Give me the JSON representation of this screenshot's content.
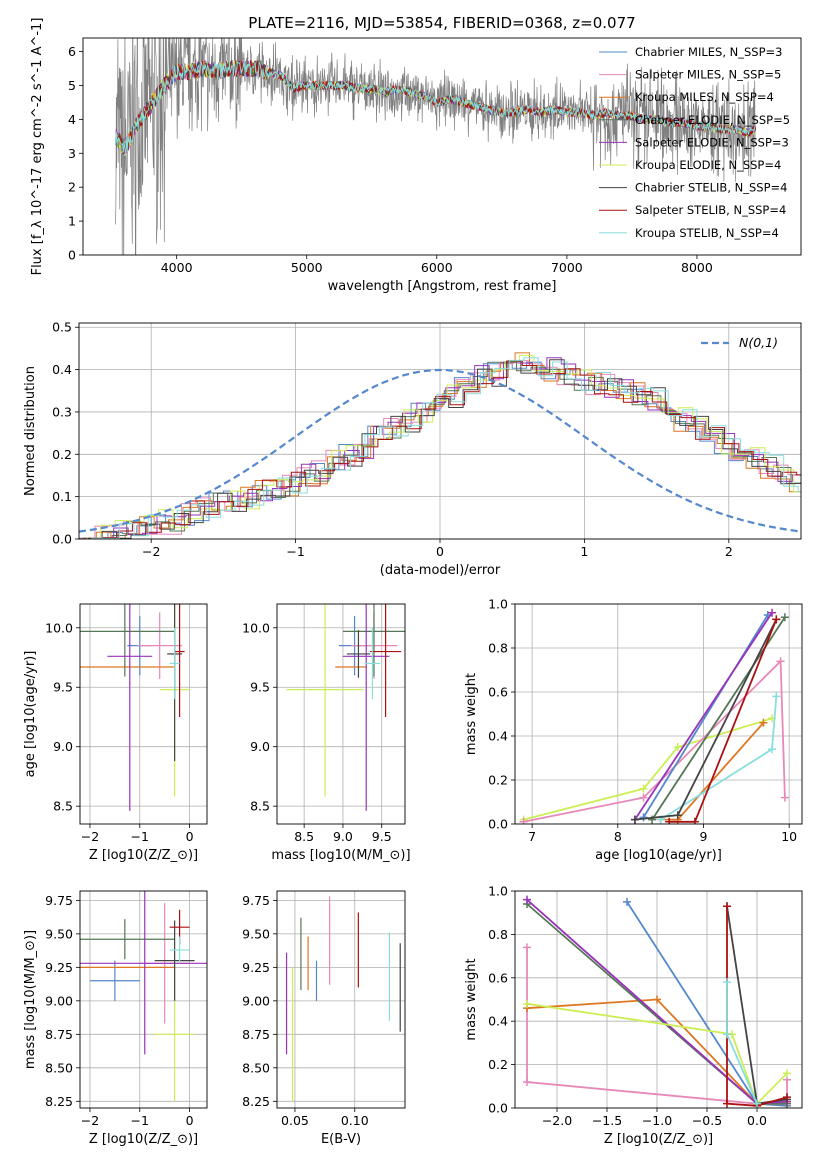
{
  "chart_data": [
    {
      "id": "spectrum",
      "type": "line",
      "title": "PLATE=2116, MJD=53854, FIBERID=0368, z=0.077",
      "xlabel": "wavelength [Angstrom, rest frame]",
      "ylabel": "Flux [f_λ 10^-17 erg cm^-2 s^-1 A^-1]",
      "xlim": [
        3280,
        8800
      ],
      "ylim": [
        0,
        6.4
      ],
      "xticks": [
        4000,
        5000,
        6000,
        7000,
        8000
      ],
      "yticks": [
        0,
        1,
        2,
        3,
        4,
        5,
        6
      ],
      "data_color": "#808080",
      "data_x": [
        3530,
        3600,
        3700,
        3800,
        3900,
        3950,
        4000,
        4100,
        4200,
        4300,
        4400,
        4500,
        4600,
        4700,
        4800,
        4900,
        5000,
        5100,
        5200,
        5300,
        5400,
        5500,
        5600,
        5700,
        5800,
        5900,
        6000,
        6100,
        6200,
        6300,
        6400,
        6500,
        6550,
        6600,
        6700,
        6800,
        6900,
        7000,
        7100,
        7200,
        7300,
        7400,
        7500,
        7600,
        7700,
        7800,
        7900,
        8000,
        8100,
        8200,
        8300,
        8400,
        8450
      ],
      "data_y": [
        3.5,
        3.1,
        3.9,
        4.4,
        5.0,
        5.2,
        5.4,
        5.4,
        5.5,
        5.4,
        5.5,
        5.5,
        5.5,
        5.4,
        5.3,
        4.9,
        5.0,
        5.0,
        5.0,
        5.0,
        4.9,
        4.9,
        4.8,
        4.9,
        4.8,
        4.7,
        4.5,
        4.6,
        4.5,
        4.4,
        4.3,
        4.2,
        4.2,
        4.2,
        4.3,
        4.2,
        4.3,
        4.2,
        4.2,
        4.1,
        4.2,
        4.1,
        4.1,
        4.0,
        4.0,
        3.9,
        3.9,
        3.8,
        3.8,
        3.7,
        3.7,
        3.6,
        3.7
      ],
      "legend": [
        "Chabrier MILES, N_SSP=3",
        "Salpeter MILES, N_SSP=5",
        "Kroupa MILES, N_SSP=4",
        "Chabrier ELODIE, N_SSP=5",
        "Salpeter ELODIE, N_SSP=3",
        "Kroupa ELODIE, N_SSP=4",
        "Chabrier STELIB, N_SSP=4",
        "Salpeter STELIB, N_SSP=4",
        "Kroupa STELIB, N_SSP=4"
      ],
      "legend_position": "right"
    },
    {
      "id": "residuals",
      "type": "histogram",
      "xlabel": "(data-model)/error",
      "ylabel": "Normed distribution",
      "xlim": [
        -2.5,
        2.5
      ],
      "ylim": [
        0,
        0.51
      ],
      "xticks": [
        -2,
        -1,
        0,
        1,
        2
      ],
      "yticks": [
        0.0,
        0.1,
        0.2,
        0.3,
        0.4,
        0.5
      ],
      "bin_width": 0.1,
      "bin_start": -2.5,
      "curve_label": "N(0,1)",
      "curve_color": "#5588cc",
      "approx_envelope": [
        0.01,
        0.01,
        0.02,
        0.03,
        0.03,
        0.04,
        0.04,
        0.06,
        0.07,
        0.08,
        0.09,
        0.1,
        0.11,
        0.12,
        0.13,
        0.15,
        0.16,
        0.18,
        0.2,
        0.22,
        0.24,
        0.26,
        0.28,
        0.3,
        0.32,
        0.34,
        0.36,
        0.38,
        0.39,
        0.4,
        0.42,
        0.41,
        0.4,
        0.39,
        0.38,
        0.37,
        0.36,
        0.35,
        0.34,
        0.33,
        0.3,
        0.28,
        0.26,
        0.24,
        0.22,
        0.2,
        0.19,
        0.17,
        0.15,
        0.13,
        0.12,
        0.1,
        0.09,
        0.08,
        0.07,
        0.06,
        0.05,
        0.04,
        0.04,
        0.03
      ]
    },
    {
      "id": "age_vs_Z",
      "type": "scatter",
      "xlabel": "Z [log10(Z/Z_⊙)]",
      "ylabel": "age  [log10(age/yr)]",
      "xlim": [
        -2.2,
        0.35
      ],
      "ylim": [
        8.35,
        10.2
      ],
      "xticks": [
        -2,
        -1,
        0
      ],
      "yticks": [
        8.5,
        9.0,
        9.5,
        10.0
      ],
      "points": [
        {
          "color": "#5588cc",
          "x": -1.0,
          "xerr": 0.25,
          "y": 9.85,
          "yerr": 0.25
        },
        {
          "color": "#e888b8",
          "x": -0.6,
          "xerr": 0.45,
          "y": 9.85,
          "yerr": 0.28
        },
        {
          "color": "#dd7722",
          "x": -1.3,
          "xerr": 1.0,
          "y": 9.67,
          "yerr": 0.0
        },
        {
          "color": "#557755",
          "x": -1.3,
          "xerr": 1.0,
          "y": 9.97,
          "yerr": 0.38
        },
        {
          "color": "#9933bb",
          "x": -1.2,
          "xerr": 0.45,
          "y": 9.76,
          "yerr": 1.3
        },
        {
          "color": "#ccee55",
          "x": -0.3,
          "xerr": 0.3,
          "y": 9.48,
          "yerr": 0.9
        },
        {
          "color": "#444444",
          "x": -0.3,
          "xerr": 0.15,
          "y": 9.78,
          "yerr": 0.9
        },
        {
          "color": "#aa1111",
          "x": -0.2,
          "xerr": 0.1,
          "y": 9.8,
          "yerr": 0.55
        },
        {
          "color": "#88dddd",
          "x": -0.3,
          "xerr": 0.1,
          "y": 9.7,
          "yerr": 0.3
        }
      ]
    },
    {
      "id": "age_vs_mass",
      "type": "scatter",
      "xlabel": "mass [log10(M/M_⊙)]",
      "ylabel": "",
      "xlim": [
        8.15,
        9.8
      ],
      "ylim": [
        8.35,
        10.2
      ],
      "xticks": [
        8.5,
        9.0,
        9.5
      ],
      "yticks": [
        8.5,
        9.0,
        9.5,
        10.0
      ],
      "points": [
        {
          "color": "#5588cc",
          "x": 9.15,
          "xerr": 0.2,
          "y": 9.85,
          "yerr": 0.25
        },
        {
          "color": "#e888b8",
          "x": 9.4,
          "xerr": 0.3,
          "y": 9.85,
          "yerr": 0.28
        },
        {
          "color": "#dd7722",
          "x": 9.1,
          "xerr": 0.2,
          "y": 9.67,
          "yerr": 0.0
        },
        {
          "color": "#557755",
          "x": 9.4,
          "xerr": 0.4,
          "y": 9.97,
          "yerr": 0.38
        },
        {
          "color": "#9933bb",
          "x": 9.3,
          "xerr": 0.3,
          "y": 9.76,
          "yerr": 1.3
        },
        {
          "color": "#ccee55",
          "x": 8.77,
          "xerr": 0.5,
          "y": 9.48,
          "yerr": 0.9
        },
        {
          "color": "#444444",
          "x": 9.2,
          "xerr": 0.15,
          "y": 9.78,
          "yerr": 0.2
        },
        {
          "color": "#aa1111",
          "x": 9.55,
          "xerr": 0.2,
          "y": 9.8,
          "yerr": 0.55
        },
        {
          "color": "#88dddd",
          "x": 9.38,
          "xerr": 0.1,
          "y": 9.7,
          "yerr": 0.3
        }
      ]
    },
    {
      "id": "weight_vs_age",
      "type": "line",
      "xlabel": "age  [log10(age/yr)]",
      "ylabel": "mass weight",
      "xlim": [
        6.8,
        10.15
      ],
      "ylim": [
        0,
        1.0
      ],
      "xticks": [
        7,
        8,
        9,
        10
      ],
      "yticks": [
        0.0,
        0.2,
        0.4,
        0.6,
        0.8,
        1.0
      ],
      "series": [
        {
          "color": "#ccee55",
          "x": [
            6.9,
            8.3,
            8.7,
            9.8
          ],
          "y": [
            0.02,
            0.16,
            0.35,
            0.48
          ]
        },
        {
          "color": "#dd7722",
          "x": [
            8.5,
            8.7,
            9.7
          ],
          "y": [
            0.02,
            0.02,
            0.46
          ]
        },
        {
          "color": "#88dddd",
          "x": [
            8.5,
            9.8,
            9.85
          ],
          "y": [
            0.02,
            0.34,
            0.58
          ]
        },
        {
          "color": "#e888b8",
          "x": [
            6.9,
            8.3,
            9.9,
            9.95
          ],
          "y": [
            0.01,
            0.12,
            0.74,
            0.12
          ]
        },
        {
          "color": "#5588cc",
          "x": [
            8.3,
            9.75
          ],
          "y": [
            0.03,
            0.95
          ]
        },
        {
          "color": "#9933bb",
          "x": [
            8.2,
            9.8
          ],
          "y": [
            0.02,
            0.96
          ]
        },
        {
          "color": "#557755",
          "x": [
            8.4,
            9.95
          ],
          "y": [
            0.02,
            0.94
          ]
        },
        {
          "color": "#444444",
          "x": [
            8.2,
            8.7,
            9.85
          ],
          "y": [
            0.02,
            0.04,
            0.93
          ]
        },
        {
          "color": "#aa1111",
          "x": [
            8.6,
            8.9,
            9.85
          ],
          "y": [
            0.01,
            0.01,
            0.93
          ]
        }
      ]
    },
    {
      "id": "mass_vs_Z",
      "type": "scatter",
      "xlabel": "Z [log10(Z/Z_⊙)]",
      "ylabel": "mass [log10(M/M_⊙)]",
      "xlim": [
        -2.2,
        0.35
      ],
      "ylim": [
        8.2,
        9.82
      ],
      "xticks": [
        -2,
        -1,
        0
      ],
      "yticks": [
        8.25,
        8.5,
        8.75,
        9.0,
        9.25,
        9.5,
        9.75
      ],
      "points": [
        {
          "color": "#5588cc",
          "x": -1.5,
          "xerr": 0.5,
          "y": 9.15,
          "yerr": 0.15
        },
        {
          "color": "#e888b8",
          "x": -0.5,
          "xerr": 0.5,
          "y": 9.28,
          "yerr": 0.45
        },
        {
          "color": "#dd7722",
          "x": -1.3,
          "xerr": 1.0,
          "y": 9.25,
          "yerr": 0.0
        },
        {
          "color": "#557755",
          "x": -1.3,
          "xerr": 1.0,
          "y": 9.46,
          "yerr": 0.15
        },
        {
          "color": "#9933bb",
          "x": -0.9,
          "xerr": 1.3,
          "y": 9.28,
          "yerr": 0.68
        },
        {
          "color": "#ccee55",
          "x": -0.3,
          "xerr": 0.4,
          "y": 8.75,
          "yerr": 0.5
        },
        {
          "color": "#444444",
          "x": -0.3,
          "xerr": 0.4,
          "y": 9.3,
          "yerr": 0.3
        },
        {
          "color": "#aa1111",
          "x": -0.2,
          "xerr": 0.2,
          "y": 9.55,
          "yerr": 0.13
        },
        {
          "color": "#88dddd",
          "x": -0.2,
          "xerr": 0.2,
          "y": 9.38,
          "yerr": 0.1
        }
      ]
    },
    {
      "id": "mass_vs_EBV",
      "type": "scatter",
      "xlabel": "E(B-V)",
      "ylabel": "",
      "xlim": [
        0.035,
        0.142
      ],
      "ylim": [
        8.2,
        9.82
      ],
      "xticks": [
        0.05,
        0.1
      ],
      "yticks": [
        8.25,
        8.5,
        8.75,
        9.0,
        9.25,
        9.5,
        9.75
      ],
      "points": [
        {
          "color": "#9933bb",
          "x": 0.043,
          "y": 8.98,
          "yerr": 0.38
        },
        {
          "color": "#ccee55",
          "x": 0.048,
          "y": 8.75,
          "yerr": 0.5
        },
        {
          "color": "#557755",
          "x": 0.055,
          "y": 9.35,
          "yerr": 0.27
        },
        {
          "color": "#dd7722",
          "x": 0.061,
          "y": 9.28,
          "yerr": 0.2
        },
        {
          "color": "#5588cc",
          "x": 0.068,
          "y": 9.15,
          "yerr": 0.15
        },
        {
          "color": "#e888b8",
          "x": 0.079,
          "y": 9.45,
          "yerr": 0.33
        },
        {
          "color": "#aa1111",
          "x": 0.103,
          "y": 9.38,
          "yerr": 0.28
        },
        {
          "color": "#88dddd",
          "x": 0.129,
          "y": 9.18,
          "yerr": 0.33
        },
        {
          "color": "#444444",
          "x": 0.138,
          "y": 9.1,
          "yerr": 0.33
        }
      ]
    },
    {
      "id": "weight_vs_Z",
      "type": "line",
      "xlabel": "Z [log10(Z/Z_⊙)]",
      "ylabel": "mass weight",
      "xlim": [
        -2.42,
        0.45
      ],
      "ylim": [
        0,
        1.0
      ],
      "xticks": [
        -2.0,
        -1.5,
        -1.0,
        -0.5,
        0.0
      ],
      "yticks": [
        0.0,
        0.2,
        0.4,
        0.6,
        0.8,
        1.0
      ],
      "series": [
        {
          "color": "#5588cc",
          "x": [
            -1.3,
            0.0,
            0.3
          ],
          "y": [
            0.95,
            0.02,
            0.01
          ]
        },
        {
          "color": "#e888b8",
          "x": [
            -2.3,
            -2.3,
            0.0,
            0.3,
            0.3
          ],
          "y": [
            0.74,
            0.12,
            0.02,
            0.02,
            0.13
          ]
        },
        {
          "color": "#dd7722",
          "x": [
            -2.3,
            -1.0,
            0.0,
            0.3
          ],
          "y": [
            0.46,
            0.5,
            0.02,
            0.02
          ]
        },
        {
          "color": "#557755",
          "x": [
            -2.3,
            0.0,
            0.3
          ],
          "y": [
            0.94,
            0.02,
            0.02
          ]
        },
        {
          "color": "#9933bb",
          "x": [
            -2.3,
            0.0,
            0.3
          ],
          "y": [
            0.96,
            0.02,
            0.03
          ]
        },
        {
          "color": "#ccee55",
          "x": [
            -2.3,
            -0.25,
            0.0,
            0.3
          ],
          "y": [
            0.48,
            0.34,
            0.02,
            0.16
          ]
        },
        {
          "color": "#444444",
          "x": [
            -0.3,
            0.0,
            0.3
          ],
          "y": [
            0.93,
            0.02,
            0.04
          ]
        },
        {
          "color": "#aa1111",
          "x": [
            -0.3,
            -0.3,
            0.0,
            0.3
          ],
          "y": [
            0.93,
            0.02,
            0.01,
            0.05
          ]
        },
        {
          "color": "#88dddd",
          "x": [
            -0.3,
            -0.3,
            0.0
          ],
          "y": [
            0.58,
            0.34,
            0.02
          ]
        }
      ]
    }
  ]
}
